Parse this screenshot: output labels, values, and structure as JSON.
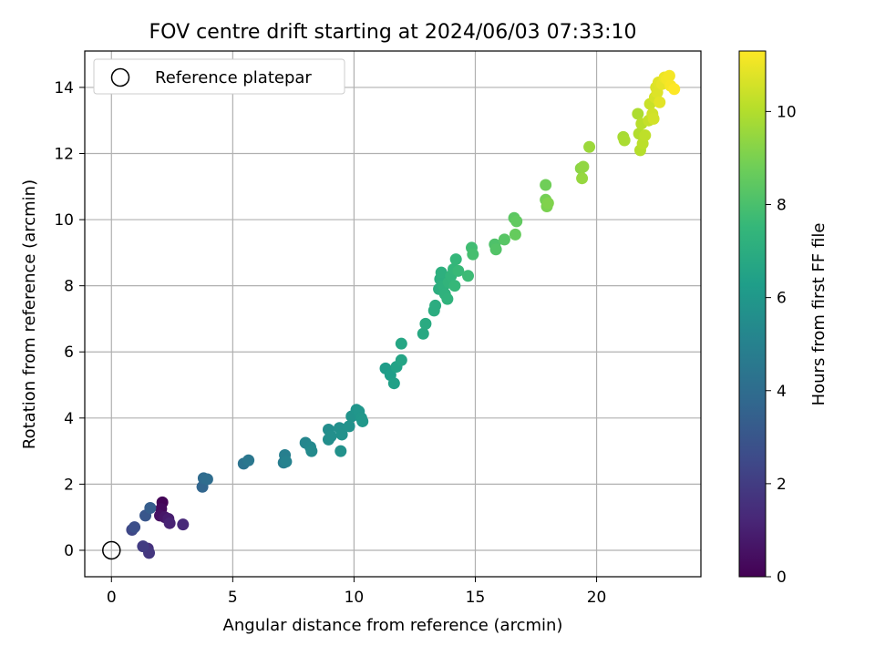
{
  "chart_data": {
    "type": "scatter",
    "title": "FOV centre drift starting at 2024/06/03 07:33:10",
    "xlabel": "Angular distance from reference (arcmin)",
    "ylabel": "Rotation from reference (arcmin)",
    "xlim": [
      -1.1,
      24.3
    ],
    "ylim": [
      -0.8,
      15.1
    ],
    "xticks": [
      0,
      5,
      10,
      15,
      20
    ],
    "yticks": [
      0,
      2,
      4,
      6,
      8,
      10,
      12,
      14
    ],
    "grid": true,
    "legend": {
      "position": "top-left",
      "label": "Reference platepar"
    },
    "reference_point": {
      "x": 0,
      "y": 0
    },
    "colorbar": {
      "label": "Hours from first FF file",
      "range": [
        0,
        11.3
      ],
      "ticks": [
        0,
        2,
        4,
        6,
        8,
        10
      ],
      "colormap": "viridis"
    },
    "points": [
      {
        "x": 2.1,
        "y": 1.45,
        "c": 0.1
      },
      {
        "x": 2.05,
        "y": 1.25,
        "c": 0.3
      },
      {
        "x": 2.0,
        "y": 1.05,
        "c": 0.5
      },
      {
        "x": 2.2,
        "y": 1.0,
        "c": 0.7
      },
      {
        "x": 2.35,
        "y": 0.95,
        "c": 0.9
      },
      {
        "x": 2.4,
        "y": 0.82,
        "c": 1.1
      },
      {
        "x": 2.95,
        "y": 0.78,
        "c": 1.3
      },
      {
        "x": 1.5,
        "y": 0.05,
        "c": 1.6
      },
      {
        "x": 1.55,
        "y": -0.08,
        "c": 1.8
      },
      {
        "x": 1.3,
        "y": 0.12,
        "c": 2.0
      },
      {
        "x": 0.85,
        "y": 0.62,
        "c": 2.4
      },
      {
        "x": 0.95,
        "y": 0.7,
        "c": 2.7
      },
      {
        "x": 1.4,
        "y": 1.05,
        "c": 3.0
      },
      {
        "x": 1.6,
        "y": 1.28,
        "c": 3.3
      },
      {
        "x": 3.75,
        "y": 1.92,
        "c": 3.7
      },
      {
        "x": 3.8,
        "y": 2.18,
        "c": 3.9
      },
      {
        "x": 3.95,
        "y": 2.15,
        "c": 4.0
      },
      {
        "x": 5.45,
        "y": 2.62,
        "c": 4.3
      },
      {
        "x": 5.65,
        "y": 2.72,
        "c": 4.5
      },
      {
        "x": 7.1,
        "y": 2.65,
        "c": 4.8
      },
      {
        "x": 7.15,
        "y": 2.88,
        "c": 4.9
      },
      {
        "x": 7.2,
        "y": 2.68,
        "c": 5.0
      },
      {
        "x": 8.0,
        "y": 3.25,
        "c": 5.2
      },
      {
        "x": 8.2,
        "y": 3.12,
        "c": 5.3
      },
      {
        "x": 8.25,
        "y": 3.0,
        "c": 5.4
      },
      {
        "x": 8.95,
        "y": 3.65,
        "c": 5.5
      },
      {
        "x": 8.95,
        "y": 3.35,
        "c": 5.55
      },
      {
        "x": 9.05,
        "y": 3.45,
        "c": 5.6
      },
      {
        "x": 9.4,
        "y": 3.7,
        "c": 5.65
      },
      {
        "x": 9.5,
        "y": 3.5,
        "c": 5.7
      },
      {
        "x": 9.45,
        "y": 3.0,
        "c": 5.7
      },
      {
        "x": 9.8,
        "y": 3.75,
        "c": 5.75
      },
      {
        "x": 9.9,
        "y": 4.05,
        "c": 5.8
      },
      {
        "x": 10.1,
        "y": 4.25,
        "c": 5.85
      },
      {
        "x": 10.2,
        "y": 4.2,
        "c": 5.9
      },
      {
        "x": 10.3,
        "y": 4.0,
        "c": 5.95
      },
      {
        "x": 10.35,
        "y": 3.9,
        "c": 6.0
      },
      {
        "x": 11.3,
        "y": 5.5,
        "c": 6.2
      },
      {
        "x": 11.5,
        "y": 5.3,
        "c": 6.3
      },
      {
        "x": 11.65,
        "y": 5.05,
        "c": 6.4
      },
      {
        "x": 11.75,
        "y": 5.55,
        "c": 6.5
      },
      {
        "x": 11.95,
        "y": 5.75,
        "c": 6.6
      },
      {
        "x": 11.95,
        "y": 6.25,
        "c": 6.7
      },
      {
        "x": 12.85,
        "y": 6.55,
        "c": 6.8
      },
      {
        "x": 12.95,
        "y": 6.85,
        "c": 6.9
      },
      {
        "x": 13.3,
        "y": 7.25,
        "c": 7.0
      },
      {
        "x": 13.35,
        "y": 7.4,
        "c": 7.0
      },
      {
        "x": 13.5,
        "y": 7.9,
        "c": 7.05
      },
      {
        "x": 13.55,
        "y": 8.2,
        "c": 7.1
      },
      {
        "x": 13.6,
        "y": 8.4,
        "c": 7.15
      },
      {
        "x": 13.7,
        "y": 8.0,
        "c": 7.2
      },
      {
        "x": 13.75,
        "y": 7.75,
        "c": 7.25
      },
      {
        "x": 13.85,
        "y": 7.6,
        "c": 7.3
      },
      {
        "x": 13.9,
        "y": 8.1,
        "c": 7.35
      },
      {
        "x": 14.0,
        "y": 8.3,
        "c": 7.4
      },
      {
        "x": 14.1,
        "y": 8.5,
        "c": 7.45
      },
      {
        "x": 14.2,
        "y": 8.8,
        "c": 7.5
      },
      {
        "x": 14.15,
        "y": 8.0,
        "c": 7.55
      },
      {
        "x": 14.3,
        "y": 8.45,
        "c": 7.6
      },
      {
        "x": 14.7,
        "y": 8.3,
        "c": 7.7
      },
      {
        "x": 14.85,
        "y": 9.15,
        "c": 7.8
      },
      {
        "x": 14.9,
        "y": 8.95,
        "c": 7.9
      },
      {
        "x": 15.8,
        "y": 9.25,
        "c": 8.1
      },
      {
        "x": 15.85,
        "y": 9.1,
        "c": 8.2
      },
      {
        "x": 16.2,
        "y": 9.4,
        "c": 8.3
      },
      {
        "x": 16.6,
        "y": 10.05,
        "c": 8.4
      },
      {
        "x": 16.7,
        "y": 9.95,
        "c": 8.5
      },
      {
        "x": 16.65,
        "y": 9.55,
        "c": 8.6
      },
      {
        "x": 17.9,
        "y": 11.05,
        "c": 8.8
      },
      {
        "x": 17.9,
        "y": 10.6,
        "c": 8.9
      },
      {
        "x": 17.95,
        "y": 10.4,
        "c": 9.0
      },
      {
        "x": 18.0,
        "y": 10.5,
        "c": 9.1
      },
      {
        "x": 19.35,
        "y": 11.55,
        "c": 9.3
      },
      {
        "x": 19.45,
        "y": 11.6,
        "c": 9.4
      },
      {
        "x": 19.4,
        "y": 11.25,
        "c": 9.5
      },
      {
        "x": 19.7,
        "y": 12.2,
        "c": 9.6
      },
      {
        "x": 21.1,
        "y": 12.5,
        "c": 9.8
      },
      {
        "x": 21.15,
        "y": 12.4,
        "c": 9.85
      },
      {
        "x": 21.7,
        "y": 13.2,
        "c": 9.9
      },
      {
        "x": 21.75,
        "y": 12.6,
        "c": 10.0
      },
      {
        "x": 21.8,
        "y": 12.1,
        "c": 10.05
      },
      {
        "x": 21.85,
        "y": 12.9,
        "c": 10.1
      },
      {
        "x": 21.9,
        "y": 12.3,
        "c": 10.15
      },
      {
        "x": 22.0,
        "y": 12.55,
        "c": 10.2
      },
      {
        "x": 22.15,
        "y": 13.0,
        "c": 10.3
      },
      {
        "x": 22.2,
        "y": 13.5,
        "c": 10.4
      },
      {
        "x": 22.3,
        "y": 13.2,
        "c": 10.5
      },
      {
        "x": 22.35,
        "y": 13.05,
        "c": 10.55
      },
      {
        "x": 22.4,
        "y": 13.7,
        "c": 10.6
      },
      {
        "x": 22.45,
        "y": 14.0,
        "c": 10.7
      },
      {
        "x": 22.5,
        "y": 13.85,
        "c": 10.75
      },
      {
        "x": 22.55,
        "y": 14.15,
        "c": 10.8
      },
      {
        "x": 22.6,
        "y": 13.55,
        "c": 10.85
      },
      {
        "x": 22.7,
        "y": 14.1,
        "c": 10.9
      },
      {
        "x": 22.8,
        "y": 14.3,
        "c": 11.0
      },
      {
        "x": 22.9,
        "y": 14.25,
        "c": 11.1
      },
      {
        "x": 23.0,
        "y": 14.35,
        "c": 11.15
      },
      {
        "x": 23.05,
        "y": 14.05,
        "c": 11.2
      },
      {
        "x": 23.2,
        "y": 13.95,
        "c": 11.3
      }
    ]
  }
}
